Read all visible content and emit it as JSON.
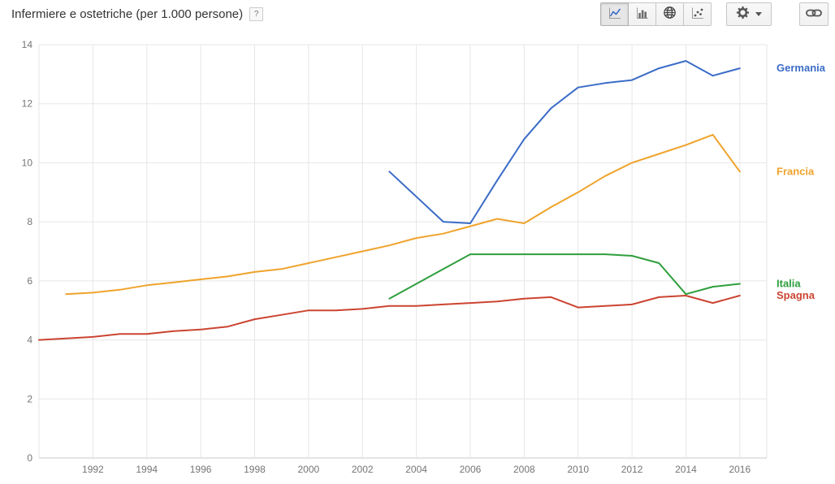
{
  "toolbar": {
    "title": "Infermiere e ostetriche (per 1.000 persone)",
    "help_label": "?",
    "buttons": [
      {
        "name": "line-chart-button",
        "icon": "line-chart-icon",
        "selected": true
      },
      {
        "name": "bar-chart-button",
        "icon": "bar-chart-icon",
        "selected": false
      },
      {
        "name": "map-chart-button",
        "icon": "globe-icon",
        "selected": false
      },
      {
        "name": "scatter-chart-button",
        "icon": "scatter-icon",
        "selected": false
      },
      {
        "name": "settings-button",
        "icon": "gear-icon",
        "has_caret": true,
        "selected": false
      },
      {
        "name": "link-button",
        "icon": "link-icon",
        "selected": false
      }
    ]
  },
  "chart_data": {
    "type": "line",
    "title": "Infermiere e ostetriche (per 1.000 persone)",
    "xlabel": "",
    "ylabel": "",
    "xlim": [
      1990,
      2017
    ],
    "ylim": [
      0,
      14
    ],
    "x_ticks": [
      1992,
      1994,
      1996,
      1998,
      2000,
      2002,
      2004,
      2006,
      2008,
      2010,
      2012,
      2014,
      2016
    ],
    "y_ticks": [
      0,
      2,
      4,
      6,
      8,
      10,
      12,
      14
    ],
    "grid": true,
    "legend_position": "right",
    "series": [
      {
        "name": "Germania",
        "color": "#3b6cc7",
        "points": [
          [
            2003,
            9.7
          ],
          [
            2004,
            8.85
          ],
          [
            2005,
            8.0
          ],
          [
            2006,
            7.95
          ],
          [
            2007,
            9.4
          ],
          [
            2008,
            10.8
          ],
          [
            2009,
            11.85
          ],
          [
            2010,
            12.55
          ],
          [
            2011,
            12.7
          ],
          [
            2012,
            12.8
          ],
          [
            2013,
            13.2
          ],
          [
            2014,
            13.45
          ],
          [
            2015,
            12.95
          ],
          [
            2016,
            13.2
          ]
        ]
      },
      {
        "name": "Francia",
        "color": "#efa32b",
        "points": [
          [
            1991,
            5.55
          ],
          [
            1992,
            5.6
          ],
          [
            1993,
            5.7
          ],
          [
            1994,
            5.85
          ],
          [
            1995,
            5.95
          ],
          [
            1996,
            6.05
          ],
          [
            1997,
            6.15
          ],
          [
            1998,
            6.3
          ],
          [
            1999,
            6.4
          ],
          [
            2000,
            6.6
          ],
          [
            2001,
            6.8
          ],
          [
            2002,
            7.0
          ],
          [
            2003,
            7.2
          ],
          [
            2004,
            7.45
          ],
          [
            2005,
            7.6
          ],
          [
            2006,
            7.85
          ],
          [
            2007,
            8.1
          ],
          [
            2008,
            7.95
          ],
          [
            2009,
            8.5
          ],
          [
            2010,
            9.0
          ],
          [
            2011,
            9.55
          ],
          [
            2012,
            10.0
          ],
          [
            2013,
            10.3
          ],
          [
            2014,
            10.6
          ],
          [
            2015,
            10.95
          ],
          [
            2016,
            9.7
          ]
        ]
      },
      {
        "name": "Italia",
        "color": "#2e9e3c",
        "points": [
          [
            2003,
            5.4
          ],
          [
            2004,
            5.9
          ],
          [
            2005,
            6.4
          ],
          [
            2006,
            6.9
          ],
          [
            2007,
            6.9
          ],
          [
            2008,
            6.9
          ],
          [
            2009,
            6.9
          ],
          [
            2010,
            6.9
          ],
          [
            2011,
            6.9
          ],
          [
            2012,
            6.85
          ],
          [
            2013,
            6.6
          ],
          [
            2014,
            5.55
          ],
          [
            2015,
            5.8
          ],
          [
            2016,
            5.9
          ]
        ]
      },
      {
        "name": "Spagna",
        "color": "#cb4431",
        "points": [
          [
            1990,
            4.0
          ],
          [
            1991,
            4.05
          ],
          [
            1992,
            4.1
          ],
          [
            1993,
            4.2
          ],
          [
            1994,
            4.2
          ],
          [
            1995,
            4.3
          ],
          [
            1996,
            4.35
          ],
          [
            1997,
            4.45
          ],
          [
            1998,
            4.7
          ],
          [
            1999,
            4.85
          ],
          [
            2000,
            5.0
          ],
          [
            2001,
            5.0
          ],
          [
            2002,
            5.05
          ],
          [
            2003,
            5.15
          ],
          [
            2004,
            5.15
          ],
          [
            2005,
            5.2
          ],
          [
            2006,
            5.25
          ],
          [
            2007,
            5.3
          ],
          [
            2008,
            5.4
          ],
          [
            2009,
            5.45
          ],
          [
            2010,
            5.1
          ],
          [
            2011,
            5.15
          ],
          [
            2012,
            5.2
          ],
          [
            2013,
            5.45
          ],
          [
            2014,
            5.5
          ],
          [
            2015,
            5.25
          ],
          [
            2016,
            5.5
          ]
        ]
      }
    ]
  }
}
